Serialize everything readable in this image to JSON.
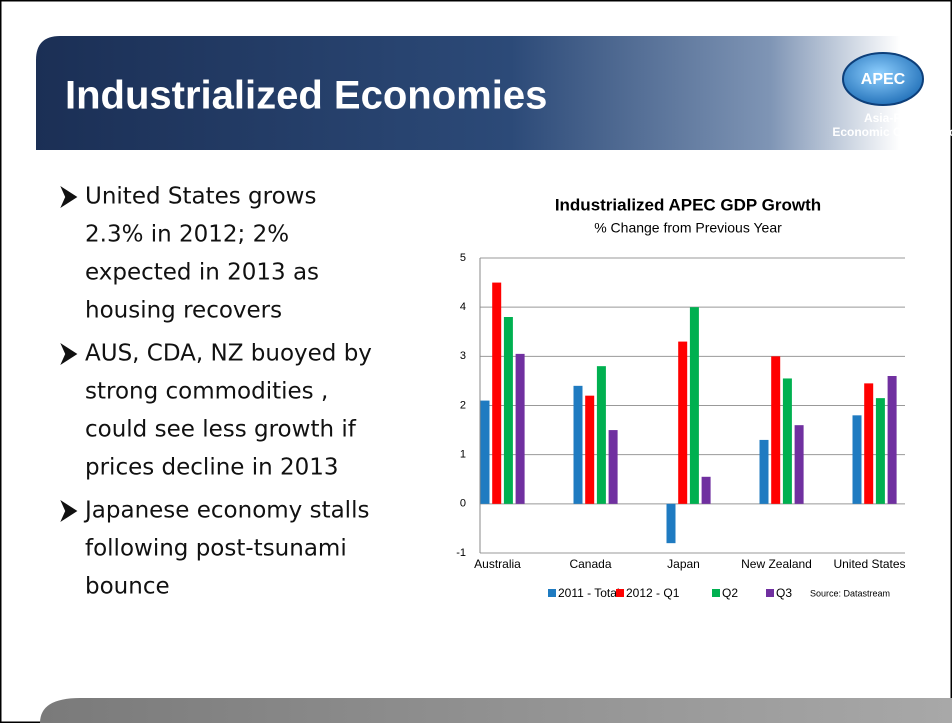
{
  "header": {
    "title": "Industrialized Economies",
    "logo": {
      "name": "APEC",
      "line1": "Asia-Pacific",
      "line2": "Economic Cooperation"
    }
  },
  "bullets": [
    [
      "United States grows",
      "2.3% in 2012; 2%",
      "expected in 2013 as",
      "housing recovers"
    ],
    [
      "AUS, CDA, NZ buoyed by",
      "strong commodities ,",
      "could see less growth if",
      "prices decline in 2013"
    ],
    [
      "Japanese economy stalls",
      "following post-tsunami",
      "bounce"
    ]
  ],
  "chart_data": {
    "type": "bar",
    "title": "Industrialized APEC GDP Growth",
    "subtitle": "% Change from Previous Year",
    "categories": [
      "Australia",
      "Canada",
      "Japan",
      "New Zealand",
      "United States"
    ],
    "series": [
      {
        "name": "2011 - Total",
        "color": "#1f7bc1",
        "values": [
          2.1,
          2.4,
          -0.8,
          1.3,
          1.8
        ]
      },
      {
        "name": "2012 - Q1",
        "color": "#ff0000",
        "values": [
          4.5,
          2.2,
          3.3,
          3.0,
          2.45
        ]
      },
      {
        "name": "Q2",
        "color": "#00b050",
        "values": [
          3.8,
          2.8,
          4.0,
          2.55,
          2.15
        ]
      },
      {
        "name": "Q3",
        "color": "#7030a0",
        "values": [
          3.05,
          1.5,
          0.55,
          1.6,
          2.6
        ]
      }
    ],
    "ylim": [
      -1,
      5
    ],
    "yticks": [
      -1,
      0,
      1,
      2,
      3,
      4,
      5
    ],
    "grid": true,
    "legend": "bottom",
    "annotation": "Source: Datastream"
  }
}
